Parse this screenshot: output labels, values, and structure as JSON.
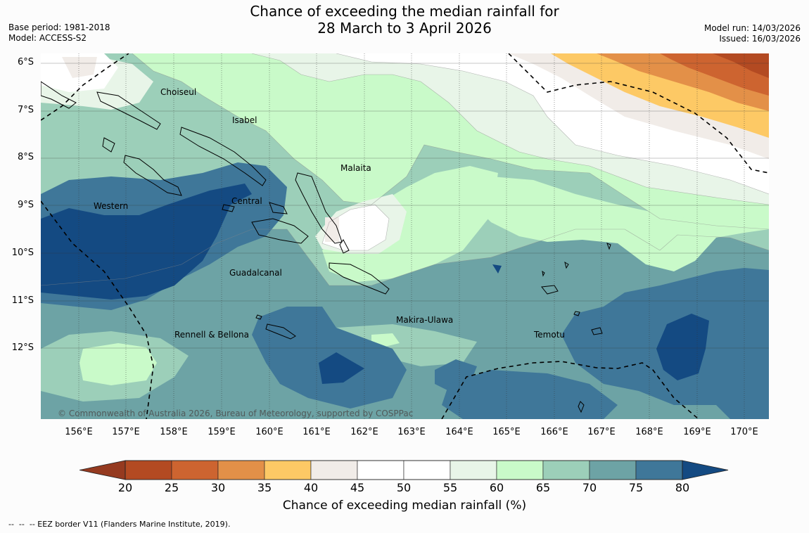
{
  "header": {
    "title_line1": "Chance of exceeding the median rainfall for",
    "title_line2": "28 March to 3 April 2026",
    "base_period": "Base period: 1981-2018",
    "model": "Model: ACCESS-S2",
    "model_run": "Model run: 14/03/2026",
    "issued": "Issued: 16/03/2026"
  },
  "map": {
    "latitude_labels": [
      "6°S",
      "7°S",
      "8°S",
      "9°S",
      "10°S",
      "11°S",
      "12°S"
    ],
    "longitude_labels": [
      "156°E",
      "157°E",
      "158°E",
      "159°E",
      "160°E",
      "161°E",
      "162°E",
      "163°E",
      "164°E",
      "165°E",
      "166°E",
      "167°E",
      "168°E",
      "169°E",
      "170°E"
    ],
    "province_labels": [
      "Choiseul",
      "Isabel",
      "Malaita",
      "Western",
      "Central",
      "Guadalcanal",
      "Makira-Ulawa",
      "Rennell & Bellona",
      "Temotu"
    ],
    "copyright": "© Commonwealth of Australia 2026, Bureau of Meteorology, supported by COSPPac",
    "colors": {
      "c20_25": "#b34a22",
      "c25_30": "#cd6430",
      "c30_35": "#e39048",
      "c35_40": "#fdc965",
      "c40_45": "#f1ece8",
      "c45_55": "#ffffff",
      "c55_60": "#e8f5e8",
      "c60_65": "#c9fac9",
      "c65_70": "#9ccfb9",
      "c70_75": "#6da3a5",
      "c75_80": "#3f7799",
      "c80_plus": "#144a82",
      "c_below": "#953a20"
    }
  },
  "colorbar": {
    "ticks": [
      "20",
      "25",
      "30",
      "35",
      "40",
      "45",
      "50",
      "55",
      "60",
      "65",
      "70",
      "75",
      "80"
    ],
    "colors": [
      "#b34a22",
      "#cd6430",
      "#e39048",
      "#fdc965",
      "#f1ece8",
      "#ffffff",
      "#ffffff",
      "#e8f5e8",
      "#c9fac9",
      "#9ccfb9",
      "#6da3a5",
      "#3f7799"
    ],
    "under_color": "#953a20",
    "over_color": "#144a82",
    "label": "Chance of exceeding median rainfall (%)"
  },
  "footer": {
    "eez_note": "--  --  -- EEZ border V11 (Flanders Marine Institute, 2019)."
  }
}
